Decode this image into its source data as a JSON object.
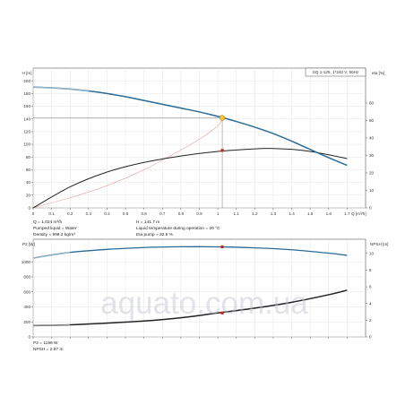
{
  "watermark": "aquato.com.ua",
  "chart_data": [
    {
      "type": "line",
      "title": "SQ 1-125, 1*240 V, 50Hz",
      "xlabel": "Q [m³/h]",
      "ylabel": "H [m]",
      "y2label": "eta [%]",
      "xlim": [
        0,
        1.8
      ],
      "ylim": [
        0,
        220
      ],
      "y2lim": [
        0,
        80
      ],
      "x_ticks": [
        "0",
        "0.1",
        "0.2",
        "0.3",
        "0.4",
        "0.5",
        "0.6",
        "0.7",
        "0.8",
        "0.9",
        "1",
        "1.1",
        "1.2",
        "1.3",
        "1.4",
        "1.5",
        "1.6",
        "1.7"
      ],
      "y_ticks": [
        "0",
        "20",
        "40",
        "60",
        "80",
        "100",
        "120",
        "140",
        "160",
        "180",
        "200"
      ],
      "y2_ticks": [
        "0",
        "10",
        "20",
        "30",
        "40",
        "50",
        "60"
      ],
      "grid": true,
      "series": [
        {
          "name": "H",
          "color": "#2a6a96",
          "axis": "left",
          "x": [
            0,
            0.1,
            0.2,
            0.3,
            0.4,
            0.5,
            0.6,
            0.7,
            0.8,
            0.9,
            1.0,
            1.1,
            1.2,
            1.3,
            1.4,
            1.5,
            1.6,
            1.7
          ],
          "y": [
            190,
            189,
            187,
            184,
            180,
            175,
            169,
            163,
            157,
            151,
            144,
            136,
            127,
            117,
            105,
            92,
            79,
            67
          ]
        },
        {
          "name": "Eta pump",
          "color": "#222222",
          "axis": "right",
          "x": [
            0,
            0.2,
            0.4,
            0.6,
            0.8,
            1.0,
            1.2,
            1.3,
            1.4,
            1.5,
            1.6,
            1.7
          ],
          "y": [
            0,
            12,
            20.5,
            26,
            29.7,
            32.3,
            33.8,
            34,
            33.5,
            32.3,
            30.4,
            28.2
          ]
        },
        {
          "name": "System curve",
          "color": "#e8a0a0",
          "axis": "left",
          "x": [
            0,
            0.2,
            0.4,
            0.6,
            0.8,
            0.9,
            1.0,
            1.024
          ],
          "y": [
            0,
            16,
            35,
            60,
            91,
            108,
            129,
            141.7
          ]
        }
      ],
      "operating_point": {
        "q": 1.024,
        "h": 141.7,
        "eta": 32.9
      },
      "annotations": [
        "Q = 1.024 m³/h",
        "Pumped liquid = Water",
        "Density = 998.2 kg/m³",
        "H = 141.7 m",
        "Liquid temperature during operation = 20 °C",
        "Eta pump = 32.9 %"
      ]
    },
    {
      "type": "line",
      "xlabel": "",
      "ylabel": "P2 [W]",
      "y2label": "NPSH [m]",
      "xlim": [
        0,
        1.8
      ],
      "ylim": [
        0,
        1300
      ],
      "y2lim": [
        0,
        11.7
      ],
      "y_ticks": [
        "0",
        "200",
        "400",
        "600",
        "800",
        "1000"
      ],
      "y2_ticks": [
        "0",
        "2",
        "4",
        "6",
        "8",
        "10"
      ],
      "grid": true,
      "series": [
        {
          "name": "P2",
          "color": "#2a6a96",
          "axis": "left",
          "x": [
            0,
            0.2,
            0.4,
            0.6,
            0.8,
            1.0,
            1.2,
            1.4,
            1.6,
            1.7
          ],
          "y": [
            1050,
            1125,
            1165,
            1190,
            1200,
            1199,
            1185,
            1160,
            1115,
            1085
          ]
        },
        {
          "name": "NPSH",
          "color": "#222222",
          "axis": "right",
          "x": [
            0,
            0.2,
            0.4,
            0.6,
            0.8,
            1.0,
            1.2,
            1.4,
            1.6,
            1.7
          ],
          "y": [
            1.35,
            1.45,
            1.65,
            1.9,
            2.3,
            2.87,
            3.45,
            4.15,
            5.05,
            5.6
          ]
        }
      ],
      "operating_point": {
        "q": 1.024,
        "p2": 1199,
        "npsh": 2.87
      },
      "annotations": [
        "P2 = 1199 W",
        "NPSH = 2.87 m"
      ]
    }
  ]
}
